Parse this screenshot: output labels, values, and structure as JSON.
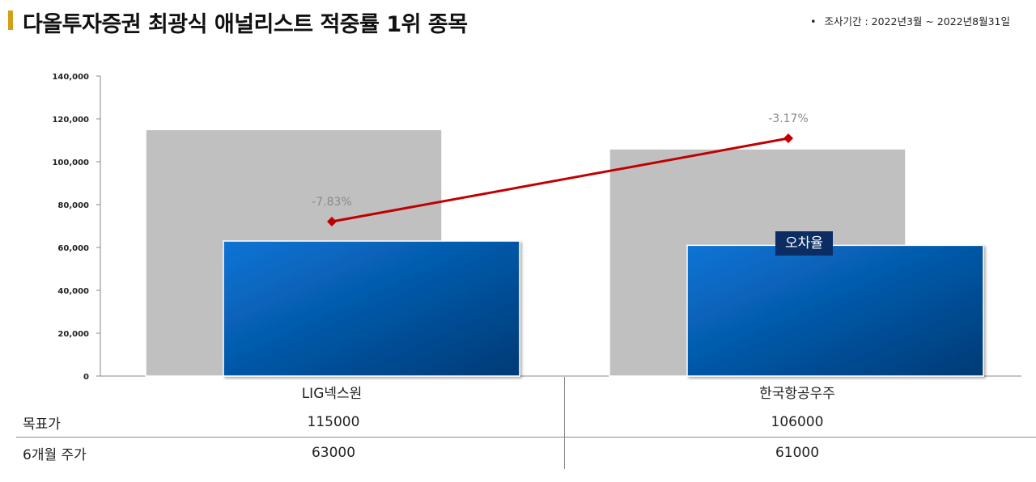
{
  "header": {
    "title": "다올투자증권 최광식 애널리스트 적중률 1위 종목",
    "period_bullet": "•",
    "period": "조사기간 : 2022년3월 ~ 2022년8월31일"
  },
  "chart_data": {
    "type": "bar",
    "categories": [
      "LIG넥스원",
      "한국항공우주"
    ],
    "series": [
      {
        "name": "목표가",
        "values": [
          115000,
          106000
        ],
        "color": "#c0c0c0"
      },
      {
        "name": "6개월 주가",
        "values": [
          63000,
          61000
        ],
        "color": "#0a63b8"
      }
    ],
    "line_series": {
      "name": "오차율",
      "values": [
        -7.83,
        -3.17
      ],
      "labels": [
        "-7.83%",
        "-3.17%"
      ],
      "color": "#c00000"
    },
    "ylim": [
      0,
      140000
    ],
    "yticks": [
      "0",
      "20,000",
      "40,000",
      "60,000",
      "80,000",
      "100,000",
      "120,000",
      "140,000"
    ],
    "ytick_values": [
      0,
      20000,
      40000,
      60000,
      80000,
      100000,
      120000,
      140000
    ],
    "legend_tag": "오차율",
    "grid": false
  },
  "table": {
    "rows": [
      {
        "label": "목표가",
        "values": [
          "115000",
          "106000"
        ]
      },
      {
        "label": "6개월 주가",
        "values": [
          "63000",
          "61000"
        ]
      }
    ]
  }
}
